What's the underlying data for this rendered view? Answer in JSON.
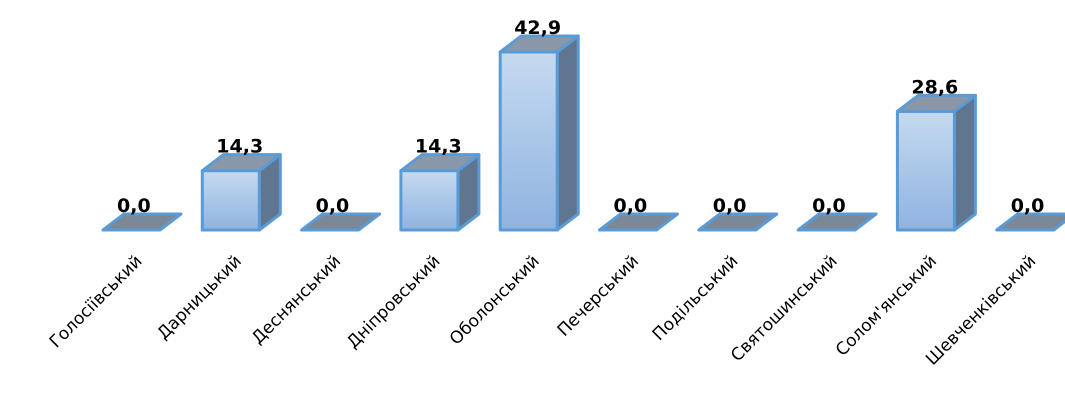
{
  "chart_data": {
    "type": "bar",
    "categories": [
      "Голосіївський",
      "Дарницький",
      "Деснянський",
      "Дніпровський",
      "Оболонський",
      "Печерський",
      "Подільський",
      "Святошинський",
      "Солом'янський",
      "Шевченківський"
    ],
    "values": [
      0.0,
      14.3,
      0.0,
      14.3,
      42.9,
      0.0,
      0.0,
      0.0,
      28.6,
      0.0
    ],
    "data_labels": [
      "0,0",
      "14,3",
      "0,0",
      "14,3",
      "42,9",
      "0,0",
      "0,0",
      "0,0",
      "28,6",
      "0,0"
    ],
    "ylim": [
      0,
      42.9
    ],
    "grid": false,
    "legend": "none",
    "style": "3d-column"
  },
  "colors": {
    "bar_front_top": "#c5daf0",
    "bar_front_bottom": "#8fb3e0",
    "bar_side": "#5f7590",
    "bar_top": "#8a97a8",
    "bar_stroke": "#5b9bd5",
    "floor_fill": "#7a8898"
  }
}
